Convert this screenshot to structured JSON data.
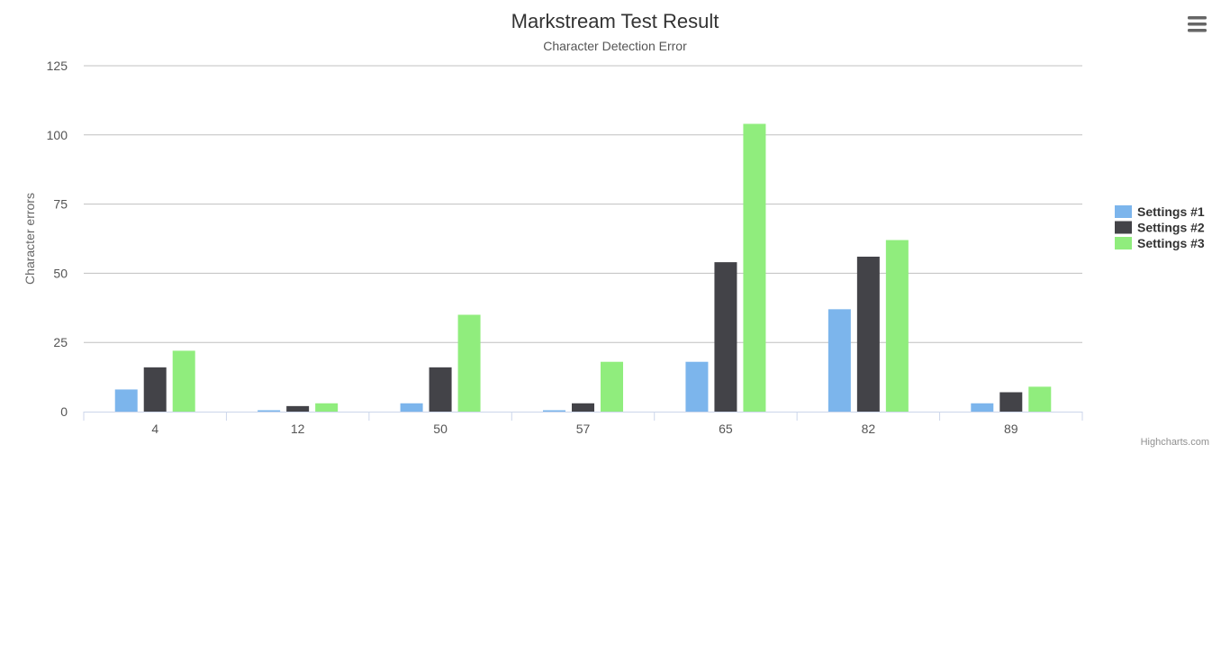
{
  "chart_data": {
    "type": "bar",
    "title": "Markstream Test Result",
    "subtitle": "Character Detection Error",
    "xlabel": "",
    "ylabel": "Character errors",
    "categories": [
      "4",
      "12",
      "50",
      "57",
      "65",
      "82",
      "89"
    ],
    "ylim": [
      0,
      125
    ],
    "yticks": [
      0,
      25,
      50,
      75,
      100,
      125
    ],
    "grid": true,
    "legend_position": "right",
    "series": [
      {
        "name": "Settings #1",
        "color": "#7cb5ec",
        "values": [
          8,
          0.5,
          3,
          0.5,
          18,
          37,
          3
        ]
      },
      {
        "name": "Settings #2",
        "color": "#434348",
        "values": [
          16,
          2,
          16,
          3,
          54,
          56,
          7
        ]
      },
      {
        "name": "Settings #3",
        "color": "#90ed7d",
        "values": [
          22,
          3,
          35,
          18,
          104,
          62,
          9
        ]
      }
    ]
  },
  "credits": "Highcharts.com",
  "menu_icon": "hamburger-menu-icon"
}
